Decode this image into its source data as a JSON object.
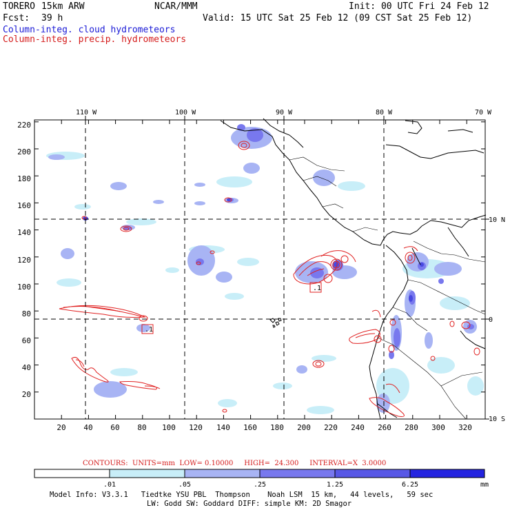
{
  "header": {
    "model": "TORERO",
    "resolution": "15km ARW",
    "org": "NCAR/MMM",
    "init": "Init: 00 UTC Fri 24 Feb 12",
    "fcst_label": "Fcst:",
    "fcst_value": "39 h",
    "valid": "Valid: 15 UTC Sat 25 Feb 12 (09 CST Sat 25 Feb 12)",
    "field1": "Column-integ. cloud hydrometeors",
    "field2": "Column-integ. precip. hydrometeors"
  },
  "colors": {
    "field1": "#1a1ad6",
    "field2": "#d41a1a",
    "contour": "#e02020",
    "shade_light": "#c8eef8",
    "shade_mid": "#a8b4f4",
    "shade_dark": "#7878ee",
    "shade_darker": "#5858e6",
    "shade_darkest": "#2424e0"
  },
  "map": {
    "lon_labels": [
      "110 W",
      "100 W",
      "90 W",
      "80 W",
      "70 W"
    ],
    "lat_labels": [
      "10 N",
      "0",
      "10 S"
    ],
    "y_ticks": [
      "220",
      "200",
      "180",
      "160",
      "140",
      "120",
      "100",
      "80",
      "60",
      "40",
      "20"
    ],
    "x_ticks": [
      "20",
      "40",
      "60",
      "80",
      "100",
      "120",
      "140",
      "160",
      "180",
      "200",
      "220",
      "240",
      "260",
      "280",
      "300",
      "320"
    ],
    "high_low_marks": [
      ".1",
      ".1"
    ]
  },
  "contour_info": {
    "text": "CONTOURS:  UNITS=mm  LOW= 0.10000     HIGH=  24.300     INTERVAL=X  3.0000"
  },
  "legend": {
    "labels": [
      ".01",
      ".05",
      ".25",
      "1.25",
      "6.25"
    ],
    "units": "mm"
  },
  "footer": {
    "line1": "Model Info: V3.3.1   Tiedtke YSU PBL  Thompson    Noah LSM  15 km,   44 levels,   59 sec",
    "line2": "LW: Godd SW: Goddard DIFF: simple KM: 2D Smagor"
  }
}
